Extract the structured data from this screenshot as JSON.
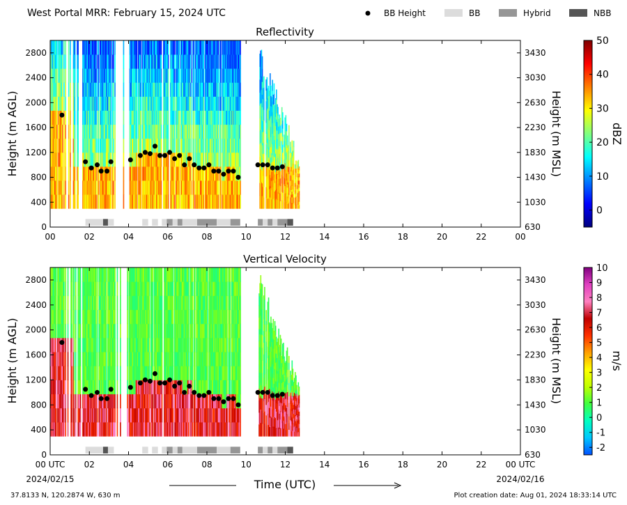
{
  "header": {
    "title": "West Portal MRR:  February 15, 2024 UTC",
    "legend": [
      {
        "key": "bb_height",
        "label": "BB Height",
        "symbol": "dot",
        "color": "#000000"
      },
      {
        "key": "bb",
        "label": "BB",
        "symbol": "box",
        "color": "#dcdcdc"
      },
      {
        "key": "hybrid",
        "label": "Hybrid",
        "symbol": "box",
        "color": "#969696"
      },
      {
        "key": "nbb",
        "label": "NBB",
        "symbol": "box",
        "color": "#555555"
      }
    ]
  },
  "footer": {
    "location": "37.8133 N, 120.2874 W, 630 m",
    "creation": "Plot creation date: Aug 01, 2024 18:33:14 UTC",
    "time_label": "Time (UTC)",
    "start_date": "2024/02/15",
    "end_date": "2024/02/16"
  },
  "chart_data": [
    {
      "type": "heatmap",
      "title": "Reflectivity",
      "xlabel": "",
      "ylabel": "Height (m AGL)",
      "y2label": "Height (m MSL)",
      "xlim": [
        0,
        24
      ],
      "ylim": [
        0,
        3000
      ],
      "x_ticks": [
        "00",
        "02",
        "04",
        "06",
        "08",
        "10",
        "12",
        "14",
        "16",
        "18",
        "20",
        "22",
        "00"
      ],
      "y_ticks": [
        0,
        400,
        800,
        1200,
        1600,
        2000,
        2400,
        2800
      ],
      "y2_ticks": [
        630,
        1030,
        1430,
        1830,
        2230,
        2630,
        3030,
        3430
      ],
      "colorbar": {
        "label": "dBZ",
        "ticks": [
          "0",
          "10",
          "20",
          "30",
          "40",
          "50"
        ],
        "min": -5,
        "max": 50,
        "stops": [
          "#00007f",
          "#0000ff",
          "#0080ff",
          "#00ffff",
          "#80ff80",
          "#ffff00",
          "#ff8000",
          "#ff0000",
          "#7f0000"
        ]
      },
      "data_coverage_hours": [
        [
          0.0,
          9.7
        ],
        [
          10.6,
          12.7
        ]
      ],
      "bb_height": {
        "hour": [
          0.6,
          1.8,
          2.1,
          2.4,
          2.6,
          2.9,
          3.1,
          4.1,
          4.6,
          4.85,
          5.1,
          5.35,
          5.6,
          5.85,
          6.1,
          6.35,
          6.6,
          6.85,
          7.1,
          7.35,
          7.6,
          7.85,
          8.1,
          8.35,
          8.6,
          8.85,
          9.1,
          9.35,
          9.6,
          10.6,
          10.85,
          11.1,
          11.35,
          11.6,
          11.85
        ],
        "height_m": [
          1800,
          1050,
          950,
          1000,
          900,
          900,
          1050,
          1080,
          1150,
          1200,
          1180,
          1300,
          1150,
          1150,
          1200,
          1100,
          1150,
          1000,
          1100,
          1000,
          950,
          950,
          1000,
          900,
          900,
          850,
          900,
          900,
          800,
          1000,
          1000,
          1000,
          950,
          950,
          970
        ]
      },
      "bb_type_segments": [
        {
          "start": 1.8,
          "end": 2.7,
          "type": "BB"
        },
        {
          "start": 2.7,
          "end": 2.95,
          "type": "NBB"
        },
        {
          "start": 2.95,
          "end": 3.25,
          "type": "BB"
        },
        {
          "start": 4.7,
          "end": 5.0,
          "type": "BB"
        },
        {
          "start": 5.2,
          "end": 5.5,
          "type": "BB"
        },
        {
          "start": 5.7,
          "end": 5.95,
          "type": "BB"
        },
        {
          "start": 5.95,
          "end": 6.25,
          "type": "Hybrid"
        },
        {
          "start": 6.25,
          "end": 6.5,
          "type": "BB"
        },
        {
          "start": 6.5,
          "end": 6.75,
          "type": "Hybrid"
        },
        {
          "start": 6.75,
          "end": 7.5,
          "type": "BB"
        },
        {
          "start": 7.5,
          "end": 8.5,
          "type": "Hybrid"
        },
        {
          "start": 8.5,
          "end": 9.2,
          "type": "BB"
        },
        {
          "start": 9.2,
          "end": 9.7,
          "type": "Hybrid"
        },
        {
          "start": 10.6,
          "end": 10.85,
          "type": "Hybrid"
        },
        {
          "start": 10.85,
          "end": 11.1,
          "type": "BB"
        },
        {
          "start": 11.1,
          "end": 11.35,
          "type": "Hybrid"
        },
        {
          "start": 11.35,
          "end": 11.6,
          "type": "BB"
        },
        {
          "start": 11.6,
          "end": 12.1,
          "type": "Hybrid"
        },
        {
          "start": 12.1,
          "end": 12.4,
          "type": "NBB"
        }
      ]
    },
    {
      "type": "heatmap",
      "title": "Vertical Velocity",
      "xlabel": "Time (UTC)",
      "ylabel": "Height (m AGL)",
      "y2label": "Height (m MSL)",
      "xlim": [
        0,
        24
      ],
      "ylim": [
        0,
        3000
      ],
      "x_ticks": [
        "00 UTC",
        "02",
        "04",
        "06",
        "08",
        "10",
        "12",
        "14",
        "16",
        "18",
        "20",
        "22",
        "00 UTC"
      ],
      "y_ticks": [
        0,
        400,
        800,
        1200,
        1600,
        2000,
        2400,
        2800
      ],
      "y2_ticks": [
        630,
        1030,
        1430,
        1830,
        2230,
        2630,
        3030,
        3430
      ],
      "colorbar": {
        "label": "m/s",
        "ticks": [
          "-2",
          "-1",
          "0",
          "1",
          "2",
          "3",
          "4",
          "5",
          "6",
          "7",
          "8",
          "9",
          "10"
        ],
        "min": -2.5,
        "max": 10,
        "stops": [
          "#0050ff",
          "#00c8ff",
          "#00ffc0",
          "#40ff40",
          "#c0ff00",
          "#ffff00",
          "#ffa000",
          "#ff3000",
          "#c00000",
          "#ff80c0",
          "#e040c0",
          "#800080"
        ]
      },
      "data_coverage_hours": [
        [
          0.0,
          9.7
        ],
        [
          10.6,
          12.7
        ]
      ],
      "bb_height": {
        "hour": [
          0.6,
          1.8,
          2.1,
          2.4,
          2.6,
          2.9,
          3.1,
          4.1,
          4.6,
          4.85,
          5.1,
          5.35,
          5.6,
          5.85,
          6.1,
          6.35,
          6.6,
          6.85,
          7.1,
          7.35,
          7.6,
          7.85,
          8.1,
          8.35,
          8.6,
          8.85,
          9.1,
          9.35,
          9.6,
          10.6,
          10.85,
          11.1,
          11.35,
          11.6,
          11.85
        ],
        "height_m": [
          1800,
          1050,
          950,
          1000,
          900,
          900,
          1050,
          1080,
          1150,
          1200,
          1180,
          1300,
          1150,
          1150,
          1200,
          1100,
          1150,
          1000,
          1100,
          1000,
          950,
          950,
          1000,
          900,
          900,
          850,
          900,
          900,
          800,
          1000,
          1000,
          1000,
          950,
          950,
          970
        ]
      },
      "bb_type_segments": [
        {
          "start": 1.8,
          "end": 2.7,
          "type": "BB"
        },
        {
          "start": 2.7,
          "end": 2.95,
          "type": "NBB"
        },
        {
          "start": 2.95,
          "end": 3.25,
          "type": "BB"
        },
        {
          "start": 4.7,
          "end": 5.0,
          "type": "BB"
        },
        {
          "start": 5.2,
          "end": 5.5,
          "type": "BB"
        },
        {
          "start": 5.7,
          "end": 5.95,
          "type": "BB"
        },
        {
          "start": 5.95,
          "end": 6.25,
          "type": "Hybrid"
        },
        {
          "start": 6.25,
          "end": 6.5,
          "type": "BB"
        },
        {
          "start": 6.5,
          "end": 6.75,
          "type": "Hybrid"
        },
        {
          "start": 6.75,
          "end": 7.5,
          "type": "BB"
        },
        {
          "start": 7.5,
          "end": 8.5,
          "type": "Hybrid"
        },
        {
          "start": 8.5,
          "end": 9.2,
          "type": "BB"
        },
        {
          "start": 9.2,
          "end": 9.7,
          "type": "Hybrid"
        },
        {
          "start": 10.6,
          "end": 10.85,
          "type": "Hybrid"
        },
        {
          "start": 10.85,
          "end": 11.1,
          "type": "BB"
        },
        {
          "start": 11.1,
          "end": 11.35,
          "type": "Hybrid"
        },
        {
          "start": 11.35,
          "end": 11.6,
          "type": "BB"
        },
        {
          "start": 11.6,
          "end": 12.1,
          "type": "Hybrid"
        },
        {
          "start": 12.1,
          "end": 12.4,
          "type": "NBB"
        }
      ]
    }
  ]
}
